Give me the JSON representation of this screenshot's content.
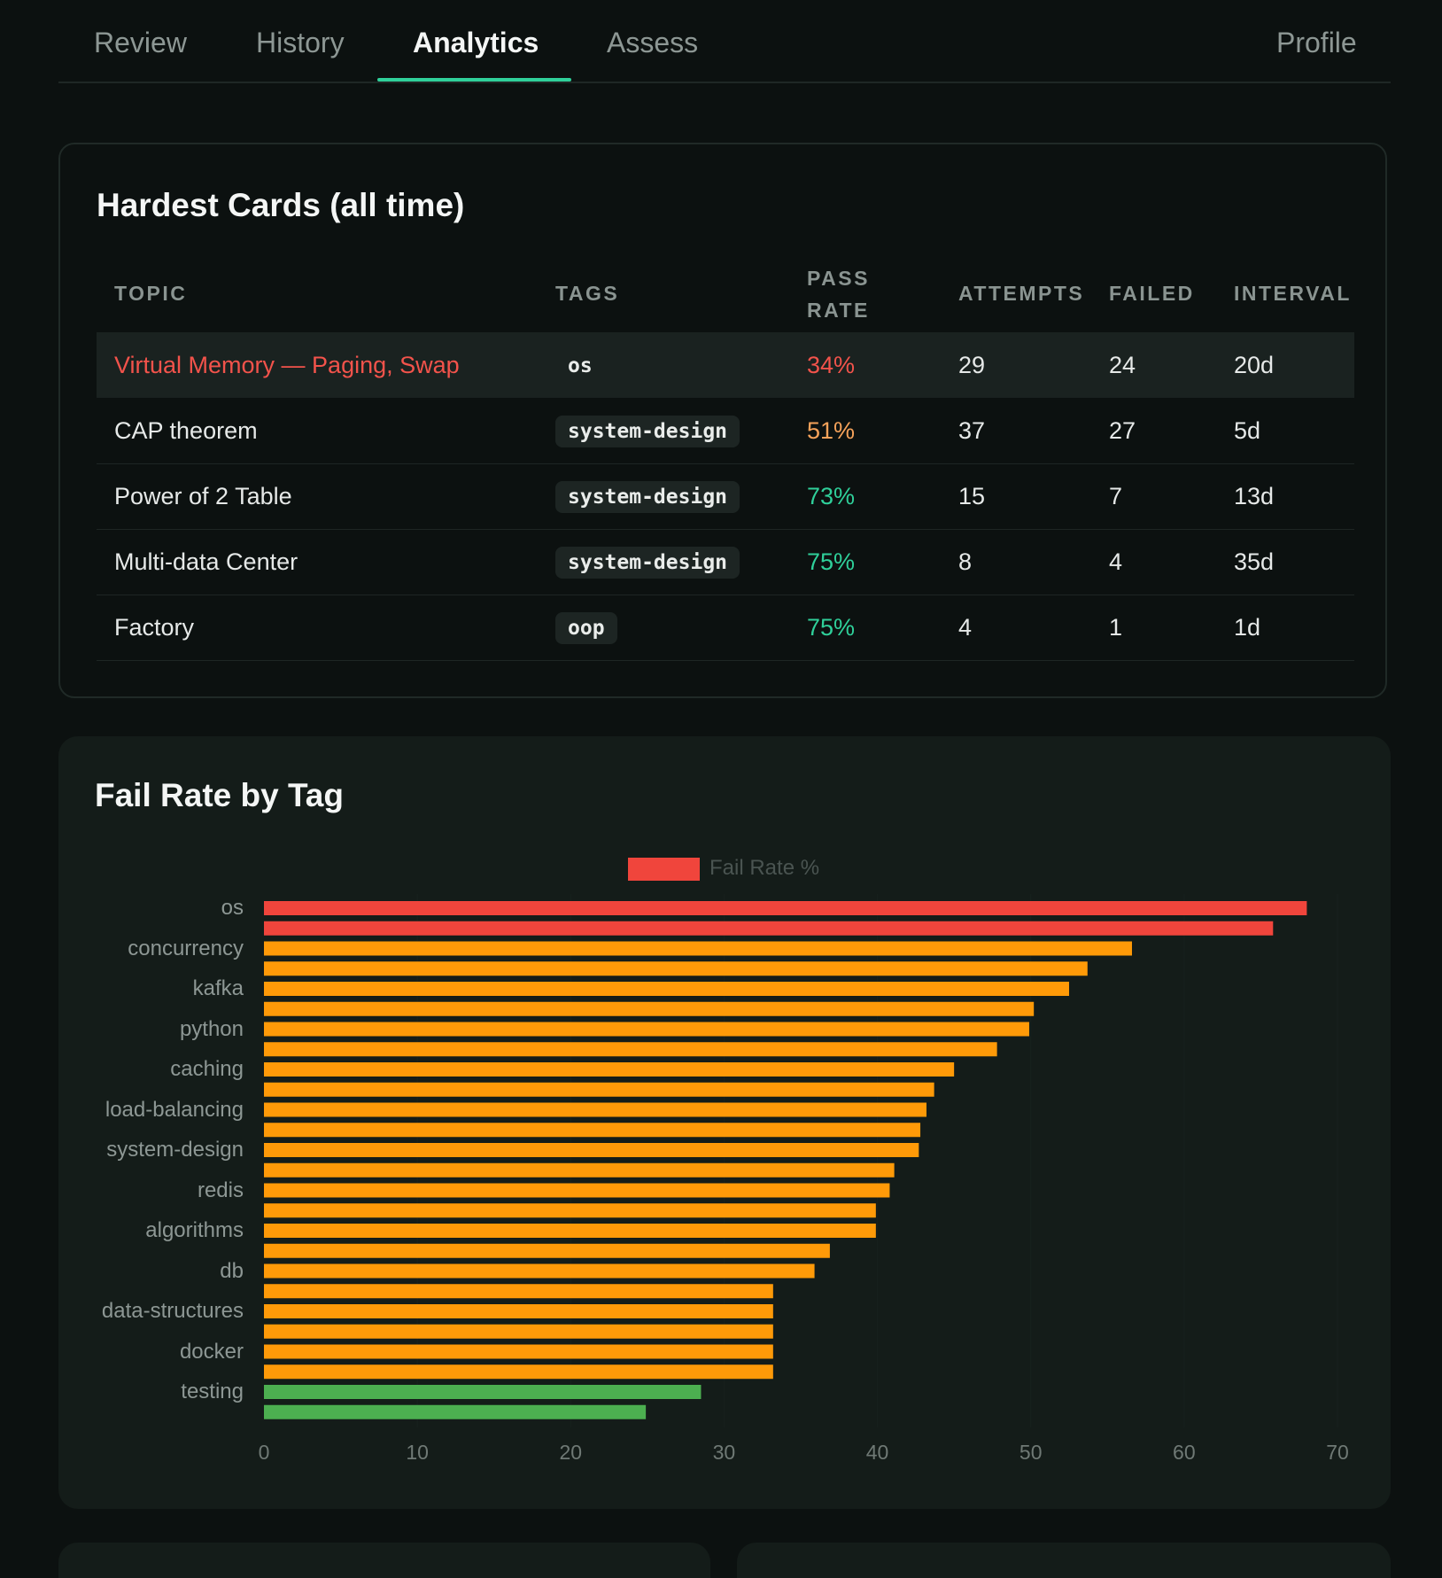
{
  "nav": {
    "tabs": [
      "Review",
      "History",
      "Analytics",
      "Assess"
    ],
    "active": "Analytics",
    "profile": "Profile"
  },
  "hardest": {
    "title": "Hardest Cards (all time)",
    "headers": {
      "topic": "TOPIC",
      "tags": "TAGS",
      "pass_rate_1": "PASS",
      "pass_rate_2": "RATE",
      "attempts": "ATTEMPTS",
      "failed": "FAILED",
      "interval": "INTERVAL"
    },
    "rows": [
      {
        "topic": "Virtual Memory — Paging, Swap",
        "tag": "os",
        "pass_rate": "34%",
        "attempts": "29",
        "failed": "24",
        "interval": "20d"
      },
      {
        "topic": "CAP theorem",
        "tag": "system-design",
        "pass_rate": "51%",
        "attempts": "37",
        "failed": "27",
        "interval": "5d"
      },
      {
        "topic": "Power of 2 Table",
        "tag": "system-design",
        "pass_rate": "73%",
        "attempts": "15",
        "failed": "7",
        "interval": "13d"
      },
      {
        "topic": "Multi-data Center",
        "tag": "system-design",
        "pass_rate": "75%",
        "attempts": "8",
        "failed": "4",
        "interval": "35d"
      },
      {
        "topic": "Factory",
        "tag": "oop",
        "pass_rate": "75%",
        "attempts": "4",
        "failed": "1",
        "interval": "1d"
      }
    ],
    "colors": {
      "danger": "#f2534b",
      "warn": "#f5a25a",
      "good": "#2fd09a"
    }
  },
  "failchart": {
    "title": "Fail Rate by Tag",
    "legend": "Fail Rate %"
  },
  "chart_data": {
    "type": "bar",
    "orientation": "horizontal",
    "series": [
      {
        "name": "Fail Rate %"
      }
    ],
    "categories": [
      "os",
      "",
      "concurrency",
      "",
      "kafka",
      "",
      "python",
      "",
      "caching",
      "",
      "load-balancing",
      "",
      "system-design",
      "",
      "redis",
      "",
      "algorithms",
      "",
      "db",
      "",
      "data-structures",
      "",
      "docker",
      "",
      "testing",
      ""
    ],
    "values": [
      68,
      65.8,
      56.6,
      53.7,
      52.5,
      50.2,
      49.9,
      47.8,
      45,
      43.7,
      43.2,
      42.8,
      42.7,
      41.1,
      40.8,
      39.9,
      39.9,
      36.9,
      35.9,
      33.2,
      33.2,
      33.2,
      33.2,
      33.2,
      28.5,
      24.9
    ],
    "xlim": [
      0,
      70
    ],
    "xticks": [
      "0",
      "10",
      "20",
      "30",
      "40",
      "50",
      "60",
      "70"
    ],
    "colors": {
      "high": "#f0453c",
      "mid": "#ff9a08",
      "low": "#4caf50"
    }
  }
}
